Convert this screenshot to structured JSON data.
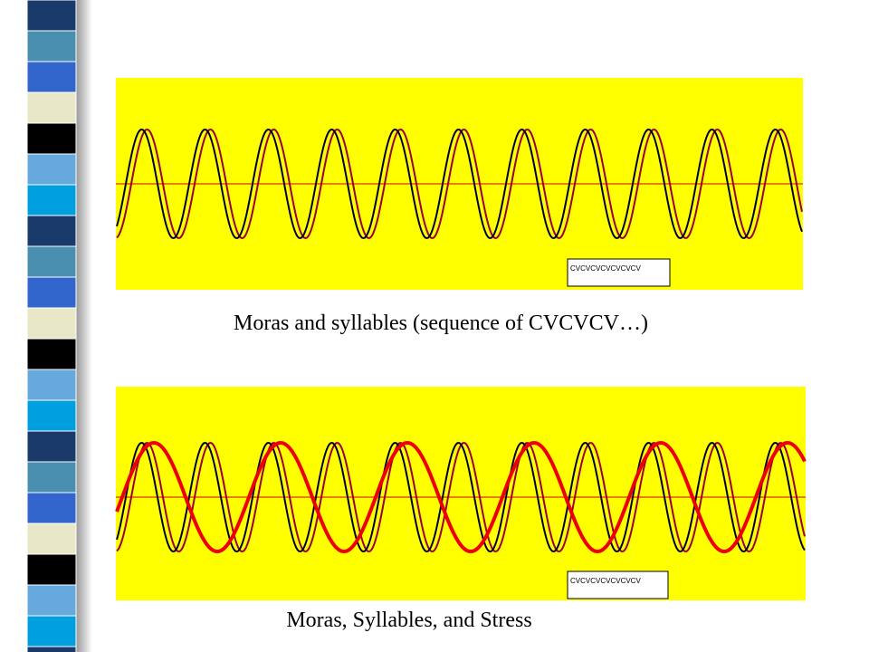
{
  "slide": {
    "panels": [
      {
        "legend": "CVCVCVCVCVCVCV",
        "caption": "Moras and syllables (sequence of CVCVCV…)"
      },
      {
        "legend": "CVCVCVCVCVCVCV",
        "caption": "Moras, Syllables, and Stress"
      }
    ]
  }
}
